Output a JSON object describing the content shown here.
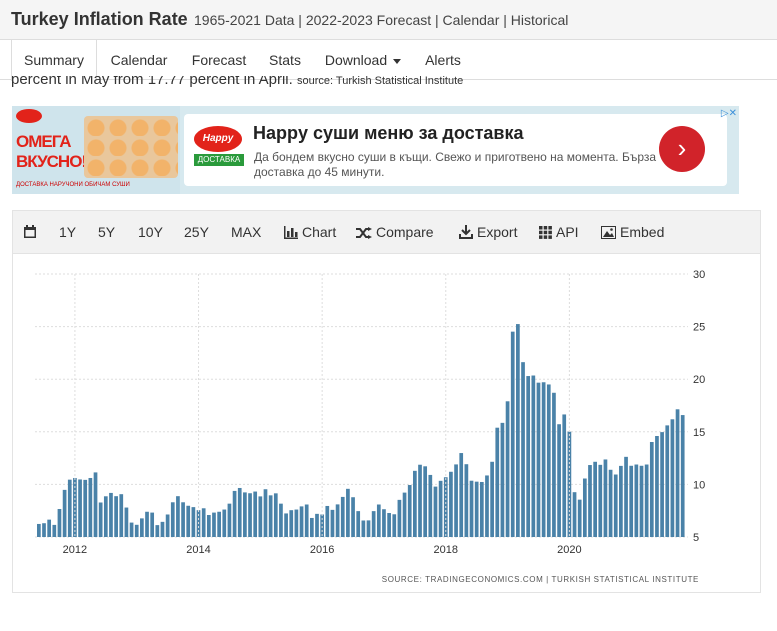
{
  "header": {
    "title": "Turkey Inflation Rate",
    "subtitle": "1965-2021 Data | 2022-2023 Forecast | Calendar | Historical"
  },
  "tabs": [
    {
      "label": "Summary"
    },
    {
      "label": "Calendar"
    },
    {
      "label": "Forecast"
    },
    {
      "label": "Stats"
    },
    {
      "label": "Download"
    },
    {
      "label": "Alerts"
    }
  ],
  "description": {
    "text": "percent in May from 17.77 percent in April.",
    "source": "source: Turkish Statistical Institute"
  },
  "ad": {
    "left_title": "ОМЕГА ВКУСНО!",
    "brand": "Happy",
    "brand_sub": "ДОСТАВКА",
    "headline": "Happy суши меню за доставка",
    "body": "Да бондем вкусно суши в къщи. Свежо и приготвено на момента. Бърза доставка до 45 минути.",
    "strip": "ДОСТАВКА НАРУЧОНИ   ОБИЧАМ СУШИ"
  },
  "toolbar": {
    "calendar_icon": "calendar-icon",
    "ranges": [
      "1Y",
      "5Y",
      "10Y",
      "25Y",
      "MAX"
    ],
    "chart": "Chart",
    "compare": "Compare",
    "export": "Export",
    "api": "API",
    "embed": "Embed"
  },
  "colors": {
    "bar": "#4a82a8",
    "grid": "#dddddd"
  },
  "chart_data": {
    "type": "bar",
    "title": "",
    "xlabel": "",
    "ylabel": "",
    "ylim": [
      5,
      30
    ],
    "yticks": [
      5,
      10,
      15,
      20,
      25,
      30
    ],
    "xticks": [
      "2012",
      "2014",
      "2016",
      "2018",
      "2020"
    ],
    "x_start": "2011-06",
    "source": "SOURCE: TRADINGECONOMICS.COM  |  TURKISH STATISTICAL INSTITUTE",
    "values": [
      6.24,
      6.31,
      6.65,
      6.15,
      7.66,
      9.48,
      10.45,
      10.61,
      10.47,
      10.43,
      10.61,
      11.14,
      8.28,
      8.87,
      9.19,
      8.88,
      9.07,
      7.8,
      6.37,
      6.16,
      6.77,
      7.4,
      7.32,
      6.13,
      6.44,
      7.14,
      8.3,
      8.88,
      8.3,
      7.97,
      7.84,
      7.55,
      7.73,
      7.09,
      7.32,
      7.4,
      7.61,
      8.17,
      9.38,
      9.66,
      9.24,
      9.16,
      9.32,
      8.86,
      9.54,
      8.96,
      9.15,
      8.17,
      7.24,
      7.55,
      7.61,
      7.91,
      8.09,
      6.81,
      7.2,
      7.14,
      7.95,
      7.58,
      8.1,
      8.81,
      9.58,
      8.78,
      7.46,
      6.57,
      6.58,
      7.46,
      8.09,
      7.64,
      7.28,
      7.16,
      8.53,
      9.22,
      9.94,
      11.29,
      11.87,
      11.72,
      10.9,
      9.79,
      10.34,
      10.68,
      11.2,
      11.9,
      12.98,
      11.92,
      10.35,
      10.26,
      10.23,
      10.85,
      12.15,
      15.39,
      15.85,
      17.9,
      24.52,
      25.24,
      21.62,
      20.3,
      20.35,
      19.67,
      19.71,
      19.5,
      18.71,
      15.72,
      16.65,
      15.01,
      9.26,
      8.55,
      10.56,
      11.84,
      12.15,
      11.86,
      12.37,
      11.39,
      10.94,
      11.76,
      12.62,
      11.77,
      11.89,
      11.77,
      11.89,
      14.03,
      14.6,
      14.97,
      15.61,
      16.19,
      17.14,
      16.59
    ]
  }
}
